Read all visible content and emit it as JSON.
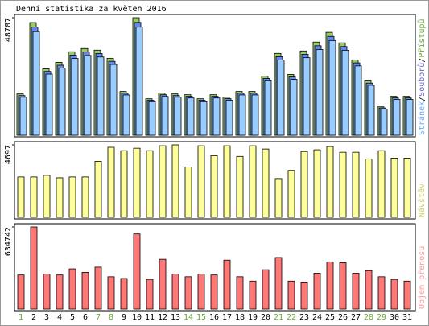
{
  "chart_data": [
    {
      "type": "bar",
      "title": "Denní statistika za květen 2016",
      "ylim": [
        0,
        48787
      ],
      "yticks": [
        48787
      ],
      "legend_separator": "/",
      "series": [
        {
          "name": "Přístupů",
          "color": "#99cc66",
          "label_color": "#66aa33",
          "values": [
            17160,
            46770,
            27590,
            30280,
            34660,
            36000,
            35330,
            31960,
            18170,
            48787,
            15140,
            17500,
            17160,
            16820,
            15140,
            16820,
            15810,
            18170,
            18170,
            24560,
            33980,
            25230,
            34990,
            38690,
            42730,
            38360,
            31290,
            22540,
            11780,
            16150,
            16150
          ]
        },
        {
          "name": "Souborů",
          "color": "#6688ee",
          "label_color": "#6666cc",
          "values": [
            16470,
            44900,
            26490,
            29070,
            33270,
            34560,
            33920,
            30680,
            17440,
            46840,
            14530,
            16800,
            16470,
            16150,
            14530,
            16150,
            15180,
            17440,
            17440,
            23580,
            32620,
            24220,
            33590,
            37140,
            41020,
            36830,
            30040,
            21640,
            11310,
            15500,
            15500
          ]
        },
        {
          "name": "Stránek",
          "color": "#99ccff",
          "label_color": "#66aaff",
          "values": [
            15790,
            43030,
            25380,
            27860,
            31890,
            33120,
            32500,
            29400,
            16720,
            44880,
            13930,
            16100,
            15790,
            15470,
            13930,
            15470,
            14550,
            16720,
            16720,
            22600,
            31260,
            23210,
            32190,
            35590,
            39310,
            35290,
            28790,
            20740,
            10840,
            14860,
            14860
          ]
        }
      ]
    },
    {
      "type": "bar",
      "ylim": [
        0,
        4697
      ],
      "yticks": [
        4697
      ],
      "series": [
        {
          "name": "Návštěv",
          "color": "#ffff99",
          "label_color": "#cccc66",
          "values": [
            2615,
            2615,
            2720,
            2560,
            2615,
            2615,
            3630,
            4540,
            4320,
            4480,
            4320,
            4640,
            4697,
            3260,
            4640,
            4000,
            4640,
            3950,
            4640,
            4430,
            2510,
            3040,
            4270,
            4380,
            4590,
            4220,
            4220,
            3790,
            4320,
            3840,
            3840
          ]
        }
      ]
    },
    {
      "type": "bar",
      "ylim": [
        0,
        634742
      ],
      "yticks": [
        634742
      ],
      "categories": [
        "1",
        "2",
        "3",
        "4",
        "5",
        "6",
        "7",
        "8",
        "9",
        "10",
        "11",
        "12",
        "13",
        "14",
        "15",
        "16",
        "17",
        "18",
        "19",
        "20",
        "21",
        "22",
        "23",
        "24",
        "25",
        "26",
        "27",
        "28",
        "29",
        "30",
        "31"
      ],
      "category_colors": [
        "#66aa33",
        "#000",
        "#000",
        "#000",
        "#000",
        "#000",
        "#66aa33",
        "#66aa33",
        "#000",
        "#000",
        "#000",
        "#000",
        "#000",
        "#66aa33",
        "#66aa33",
        "#000",
        "#000",
        "#000",
        "#000",
        "#000",
        "#66aa33",
        "#66aa33",
        "#000",
        "#000",
        "#000",
        "#000",
        "#000",
        "#66aa33",
        "#66aa33",
        "#000",
        "#000"
      ],
      "series": [
        {
          "name": "Objem přenosu",
          "color": "#ff7777",
          "label_color": "#ff9999",
          "values": [
            263400,
            634742,
            270100,
            263400,
            310600,
            283600,
            324100,
            249900,
            236400,
            580700,
            229600,
            384900,
            270100,
            249900,
            270100,
            263400,
            378200,
            249900,
            216100,
            303900,
            398400,
            216100,
            209300,
            276900,
            364700,
            357900,
            276900,
            297100,
            249900,
            229600,
            216100
          ]
        }
      ]
    }
  ]
}
